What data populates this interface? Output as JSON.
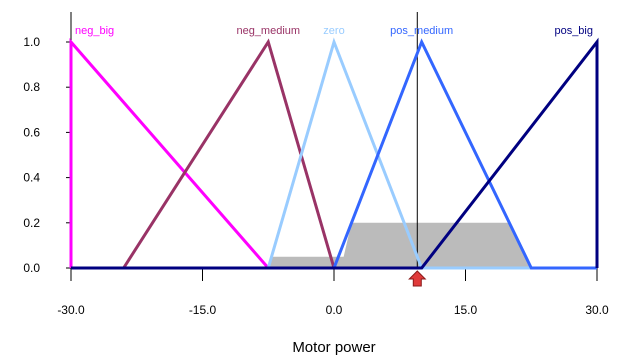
{
  "chart_data": {
    "type": "line",
    "title": "",
    "xlabel": "Motor power",
    "ylabel": "",
    "xlim": [
      -30,
      30
    ],
    "ylim": [
      0,
      1
    ],
    "x_ticks": [
      "-30.0",
      "-15.0",
      "0.0",
      "15.0",
      "30.0"
    ],
    "x_tick_values": [
      -30,
      -15,
      0,
      15,
      30
    ],
    "y_ticks": [
      "0.0",
      "0.2",
      "0.4",
      "0.6",
      "0.8",
      "1.0"
    ],
    "y_tick_values": [
      0,
      0.2,
      0.4,
      0.6,
      0.8,
      1.0
    ],
    "series": [
      {
        "name": "neg_big",
        "color": "#ff00ff",
        "points": [
          [
            -30,
            0
          ],
          [
            -30,
            1
          ],
          [
            -7.5,
            0
          ],
          [
            30,
            0
          ]
        ]
      },
      {
        "name": "neg_medium",
        "color": "#993366",
        "points": [
          [
            -30,
            0
          ],
          [
            -24,
            0
          ],
          [
            -7.5,
            1
          ],
          [
            0,
            0
          ],
          [
            30,
            0
          ]
        ]
      },
      {
        "name": "zero",
        "color": "#99ccff",
        "points": [
          [
            -30,
            0
          ],
          [
            -7.5,
            0
          ],
          [
            0,
            1
          ],
          [
            10,
            0
          ],
          [
            30,
            0
          ]
        ]
      },
      {
        "name": "pos_medium",
        "color": "#3366ff",
        "points": [
          [
            -30,
            0
          ],
          [
            0,
            0
          ],
          [
            10,
            1
          ],
          [
            22.5,
            0
          ],
          [
            30,
            0
          ]
        ]
      },
      {
        "name": "pos_big",
        "color": "#000080",
        "points": [
          [
            -30,
            0
          ],
          [
            10,
            0
          ],
          [
            30,
            1
          ],
          [
            30,
            0
          ]
        ]
      }
    ],
    "aggregated_output": {
      "color": "#bbbbbb",
      "points": [
        [
          -7.5,
          0
        ],
        [
          -7.2,
          0.05
        ],
        [
          0,
          0.05
        ],
        [
          1.1,
          0.05
        ],
        [
          2,
          0.2
        ],
        [
          20,
          0.2
        ],
        [
          22.5,
          0
        ]
      ]
    },
    "crisp_output": {
      "value": 9.5,
      "color": "#e03a3a"
    }
  }
}
